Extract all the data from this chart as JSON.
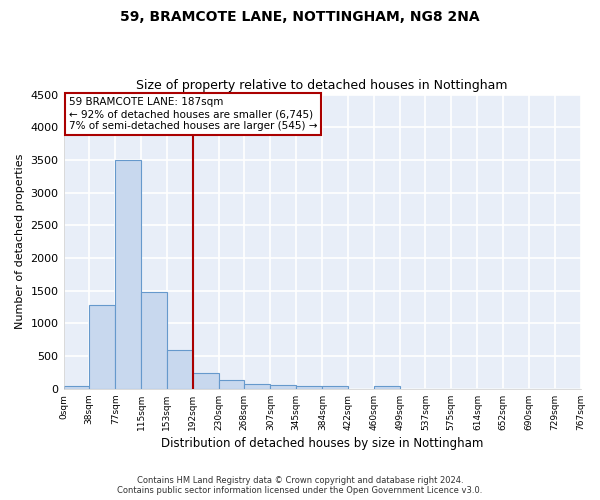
{
  "title": "59, BRAMCOTE LANE, NOTTINGHAM, NG8 2NA",
  "subtitle": "Size of property relative to detached houses in Nottingham",
  "xlabel": "Distribution of detached houses by size in Nottingham",
  "ylabel": "Number of detached properties",
  "bar_color": "#c8d8ee",
  "bar_edge_color": "#6699cc",
  "background_color": "#e8eef8",
  "grid_color": "#ffffff",
  "vline_x": 192,
  "vline_color": "#aa0000",
  "annotation_box_color": "#aa0000",
  "annotation_lines": [
    "59 BRAMCOTE LANE: 187sqm",
    "← 92% of detached houses are smaller (6,745)",
    "7% of semi-detached houses are larger (545) →"
  ],
  "bin_edges": [
    0,
    38,
    77,
    115,
    153,
    192,
    230,
    268,
    307,
    345,
    384,
    422,
    460,
    499,
    537,
    575,
    614,
    652,
    690,
    729,
    767
  ],
  "bar_heights": [
    50,
    1275,
    3500,
    1475,
    590,
    240,
    135,
    80,
    55,
    50,
    45,
    0,
    45,
    0,
    0,
    0,
    0,
    0,
    0,
    0
  ],
  "ylim": [
    0,
    4500
  ],
  "yticks": [
    0,
    500,
    1000,
    1500,
    2000,
    2500,
    3000,
    3500,
    4000,
    4500
  ],
  "footer_line1": "Contains HM Land Registry data © Crown copyright and database right 2024.",
  "footer_line2": "Contains public sector information licensed under the Open Government Licence v3.0."
}
